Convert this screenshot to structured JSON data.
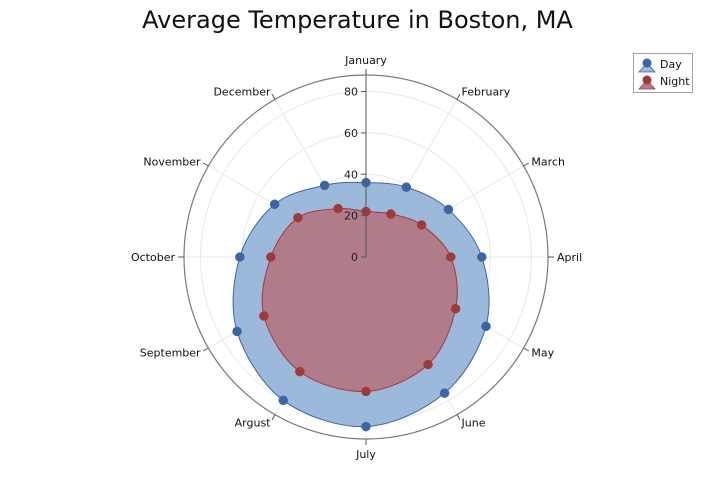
{
  "chart_data": {
    "type": "polar-area",
    "title": "Average Temperature in Boston, MA",
    "categories": [
      "January",
      "February",
      "March",
      "April",
      "May",
      "June",
      "July",
      "Argust",
      "September",
      "October",
      "November",
      "December"
    ],
    "series": [
      {
        "name": "Day",
        "color": "#3b66a6",
        "fill": "#9cb8db",
        "values": [
          36,
          39,
          46,
          56,
          67,
          76,
          82,
          80,
          72,
          61,
          51,
          40
        ]
      },
      {
        "name": "Night",
        "color": "#a03a3a",
        "fill": "#b07c8a",
        "values": [
          22,
          24,
          31,
          41,
          50,
          60,
          65,
          64,
          57,
          46,
          38,
          27
        ]
      }
    ],
    "radial_axis": {
      "min": 0,
      "max": 80,
      "ticks": [
        0,
        20,
        40,
        60,
        80
      ]
    },
    "radial_max": 88,
    "grid": true,
    "legend": "top-right"
  }
}
